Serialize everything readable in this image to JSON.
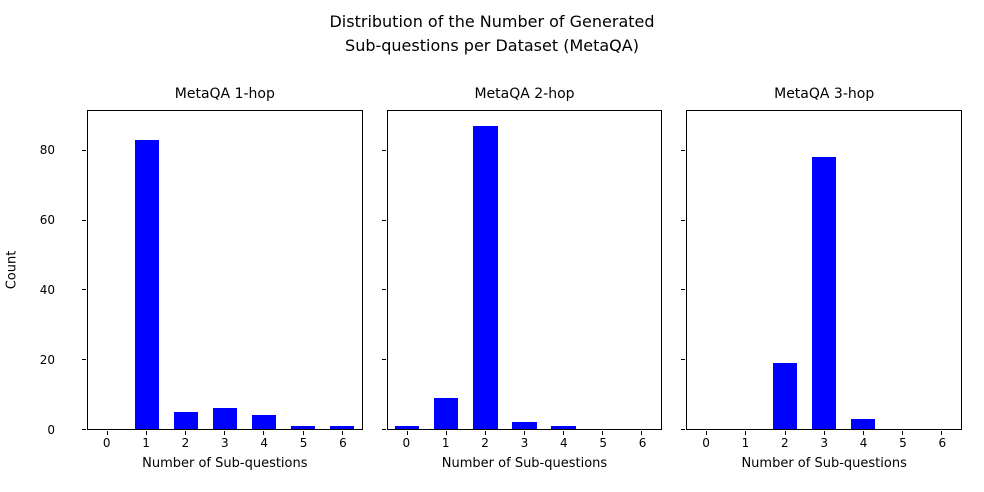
{
  "figure": {
    "title": "Distribution of the Number of Generated\nSub-questions per Dataset (MetaQA)",
    "ylabel": "Count",
    "bar_color": "#0000ff",
    "axis_color": "#000000"
  },
  "chart_data": [
    {
      "type": "bar",
      "title": "MetaQA 1-hop",
      "xlabel": "Number of Sub-questions",
      "ylabel": "Count",
      "categories": [
        "0",
        "1",
        "2",
        "3",
        "4",
        "5",
        "6"
      ],
      "values": [
        0,
        83,
        5,
        6,
        4,
        1,
        1
      ],
      "ylim": [
        0,
        91.35
      ],
      "yticks": [
        0,
        20,
        40,
        60,
        80
      ],
      "grid": false,
      "legend": "none"
    },
    {
      "type": "bar",
      "title": "MetaQA 2-hop",
      "xlabel": "Number of Sub-questions",
      "ylabel": "Count",
      "categories": [
        "0",
        "1",
        "2",
        "3",
        "4",
        "5",
        "6"
      ],
      "values": [
        1,
        9,
        87,
        2,
        1,
        0,
        0
      ],
      "ylim": [
        0,
        91.35
      ],
      "yticks": [
        0,
        20,
        40,
        60,
        80
      ],
      "grid": false,
      "legend": "none"
    },
    {
      "type": "bar",
      "title": "MetaQA 3-hop",
      "xlabel": "Number of Sub-questions",
      "ylabel": "Count",
      "categories": [
        "0",
        "1",
        "2",
        "3",
        "4",
        "5",
        "6"
      ],
      "values": [
        0,
        0,
        19,
        78,
        3,
        0,
        0
      ],
      "ylim": [
        0,
        91.35
      ],
      "yticks": [
        0,
        20,
        40,
        60,
        80
      ],
      "grid": false,
      "legend": "none"
    }
  ]
}
